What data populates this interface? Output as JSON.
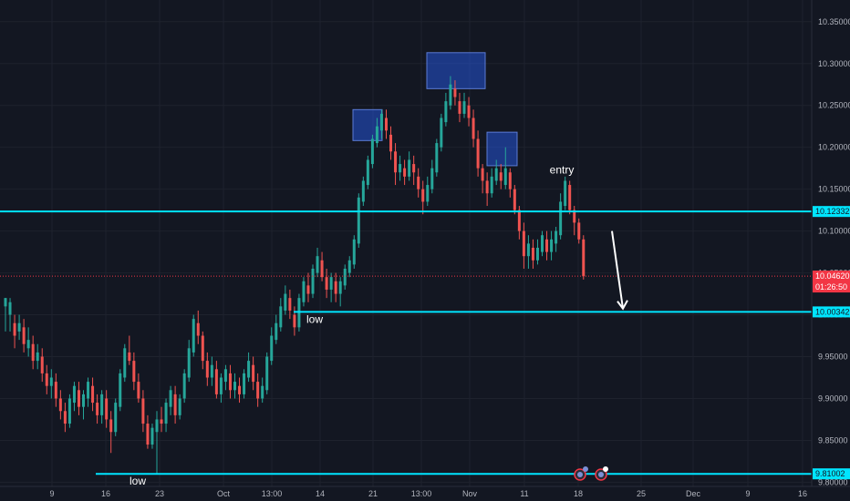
{
  "chart_data": {
    "type": "candlestick",
    "title": "",
    "xlabel": "",
    "ylabel": "",
    "ylim": [
      9.795,
      10.365
    ],
    "grid": true,
    "price_axis": {
      "position": "right",
      "ticks": [
        "9.80000",
        "9.85000",
        "9.90000",
        "9.95000",
        "10.00000",
        "10.05000",
        "10.10000",
        "10.15000",
        "10.20000",
        "10.25000",
        "10.30000",
        "10.35000"
      ]
    },
    "x_tick_labels": [
      "9",
      "16",
      "23",
      "Oct",
      "13:00",
      "14",
      "21",
      "13:00",
      "Nov",
      "11",
      "18",
      "25",
      "Dec",
      "9",
      "16"
    ],
    "horizontal_levels": [
      {
        "value": 10.12332,
        "label": "10.12332",
        "color": "#00e5ff"
      },
      {
        "value": 10.00342,
        "label": "10.00342",
        "color": "#00e5ff",
        "start_label": "low"
      },
      {
        "value": 9.81002,
        "label": "9.81002",
        "color": "#00e5ff",
        "start_label": "low"
      }
    ],
    "last_price": {
      "value": 10.0462,
      "label": "10.04620",
      "countdown": "01:26:50",
      "color": "#f23645"
    },
    "annotations": [
      {
        "text": "entry",
        "x_label": "18",
        "value": 10.163
      },
      {
        "text": "low",
        "near_level": 10.00342
      },
      {
        "text": "low",
        "near_level": 9.81002
      }
    ],
    "highlight_boxes": [
      {
        "y_range": [
          10.208,
          10.245
        ]
      },
      {
        "y_range": [
          10.27,
          10.313
        ]
      },
      {
        "y_range": [
          10.178,
          10.218
        ]
      }
    ],
    "arrow": {
      "from_value": 10.1,
      "to_value": 10.003,
      "direction": "down"
    },
    "candles": [
      [
        10.01,
        10.02,
        10.02,
        9.98
      ],
      [
        10.0,
        10.015,
        10.02,
        9.98
      ],
      [
        9.99,
        9.975,
        10.0,
        9.96
      ],
      [
        9.98,
        9.99,
        10.0,
        9.97
      ],
      [
        9.985,
        9.965,
        9.995,
        9.955
      ],
      [
        9.96,
        9.97,
        9.985,
        9.95
      ],
      [
        9.965,
        9.945,
        9.975,
        9.935
      ],
      [
        9.945,
        9.955,
        9.965,
        9.935
      ],
      [
        9.95,
        9.93,
        9.96,
        9.92
      ],
      [
        9.93,
        9.915,
        9.94,
        9.905
      ],
      [
        9.915,
        9.925,
        9.935,
        9.9
      ],
      [
        9.92,
        9.9,
        9.93,
        9.89
      ],
      [
        9.9,
        9.885,
        9.91,
        9.875
      ],
      [
        9.885,
        9.87,
        9.895,
        9.86
      ],
      [
        9.87,
        9.9,
        9.905,
        9.865
      ],
      [
        9.895,
        9.915,
        9.92,
        9.885
      ],
      [
        9.91,
        9.89,
        9.92,
        9.88
      ],
      [
        9.89,
        9.905,
        9.91,
        9.875
      ],
      [
        9.9,
        9.92,
        9.925,
        9.89
      ],
      [
        9.915,
        9.895,
        9.925,
        9.885
      ],
      [
        9.895,
        9.88,
        9.905,
        9.87
      ],
      [
        9.88,
        9.905,
        9.91,
        9.87
      ],
      [
        9.9,
        9.875,
        9.91,
        9.865
      ],
      [
        9.875,
        9.86,
        9.885,
        9.835
      ],
      [
        9.86,
        9.895,
        9.9,
        9.855
      ],
      [
        9.89,
        9.93,
        9.935,
        9.885
      ],
      [
        9.925,
        9.96,
        9.965,
        9.92
      ],
      [
        9.955,
        9.945,
        9.975,
        9.94
      ],
      [
        9.945,
        9.92,
        9.955,
        9.91
      ],
      [
        9.92,
        9.9,
        9.93,
        9.895
      ],
      [
        9.9,
        9.87,
        9.91,
        9.86
      ],
      [
        9.87,
        9.845,
        9.88,
        9.84
      ],
      [
        9.845,
        9.865,
        9.87,
        9.84
      ],
      [
        9.86,
        9.875,
        9.885,
        9.81
      ],
      [
        9.875,
        9.87,
        9.89,
        9.86
      ],
      [
        9.87,
        9.895,
        9.9,
        9.86
      ],
      [
        9.89,
        9.91,
        9.915,
        9.88
      ],
      [
        9.905,
        9.88,
        9.915,
        9.87
      ],
      [
        9.88,
        9.9,
        9.905,
        9.875
      ],
      [
        9.9,
        9.93,
        9.935,
        9.895
      ],
      [
        9.925,
        9.96,
        9.97,
        9.92
      ],
      [
        9.955,
        9.995,
        10.0,
        9.95
      ],
      [
        9.99,
        9.975,
        10.005,
        9.965
      ],
      [
        9.975,
        9.945,
        9.98,
        9.935
      ],
      [
        9.945,
        9.925,
        9.955,
        9.915
      ],
      [
        9.925,
        9.94,
        9.95,
        9.915
      ],
      [
        9.935,
        9.905,
        9.945,
        9.9
      ],
      [
        9.905,
        9.925,
        9.93,
        9.895
      ],
      [
        9.92,
        9.935,
        9.94,
        9.91
      ],
      [
        9.93,
        9.91,
        9.94,
        9.9
      ],
      [
        9.91,
        9.92,
        9.93,
        9.9
      ],
      [
        9.915,
        9.905,
        9.925,
        9.895
      ],
      [
        9.905,
        9.93,
        9.935,
        9.9
      ],
      [
        9.925,
        9.945,
        9.955,
        9.92
      ],
      [
        9.94,
        9.92,
        9.95,
        9.91
      ],
      [
        9.92,
        9.9,
        9.93,
        9.89
      ],
      [
        9.9,
        9.915,
        9.925,
        9.895
      ],
      [
        9.91,
        9.95,
        9.955,
        9.905
      ],
      [
        9.945,
        9.975,
        9.985,
        9.94
      ],
      [
        9.97,
        9.99,
        10.0,
        9.965
      ],
      [
        9.985,
        10.01,
        10.02,
        9.98
      ],
      [
        10.005,
        10.025,
        10.035,
        10.0
      ],
      [
        10.02,
        10.005,
        10.03,
        9.995
      ],
      [
        10.0,
        9.985,
        10.01,
        9.975
      ],
      [
        9.985,
        10.02,
        10.025,
        9.98
      ],
      [
        10.015,
        10.04,
        10.045,
        10.01
      ],
      [
        10.035,
        10.025,
        10.05,
        10.015
      ],
      [
        10.025,
        10.055,
        10.06,
        10.02
      ],
      [
        10.05,
        10.07,
        10.08,
        10.045
      ],
      [
        10.065,
        10.045,
        10.075,
        10.04
      ],
      [
        10.045,
        10.03,
        10.055,
        10.02
      ],
      [
        10.03,
        10.045,
        10.05,
        10.015
      ],
      [
        10.04,
        10.025,
        10.05,
        10.015
      ],
      [
        10.025,
        10.04,
        10.045,
        10.01
      ],
      [
        10.035,
        10.055,
        10.06,
        10.03
      ],
      [
        10.05,
        10.065,
        10.07,
        10.045
      ],
      [
        10.06,
        10.09,
        10.095,
        10.055
      ],
      [
        10.085,
        10.14,
        10.145,
        10.08
      ],
      [
        10.135,
        10.16,
        10.165,
        10.13
      ],
      [
        10.155,
        10.185,
        10.19,
        10.15
      ],
      [
        10.18,
        10.21,
        10.215,
        10.175
      ],
      [
        10.205,
        10.225,
        10.235,
        10.2
      ],
      [
        10.22,
        10.24,
        10.245,
        10.21
      ],
      [
        10.235,
        10.22,
        10.245,
        10.21
      ],
      [
        10.215,
        10.195,
        10.225,
        10.185
      ],
      [
        10.195,
        10.17,
        10.205,
        10.155
      ],
      [
        10.17,
        10.18,
        10.19,
        10.16
      ],
      [
        10.175,
        10.165,
        10.185,
        10.155
      ],
      [
        10.165,
        10.185,
        10.195,
        10.16
      ],
      [
        10.18,
        10.17,
        10.19,
        10.155
      ],
      [
        10.165,
        10.15,
        10.175,
        10.14
      ],
      [
        10.15,
        10.135,
        10.16,
        10.12
      ],
      [
        10.135,
        10.155,
        10.165,
        10.13
      ],
      [
        10.15,
        10.175,
        10.185,
        10.145
      ],
      [
        10.17,
        10.205,
        10.21,
        10.165
      ],
      [
        10.2,
        10.235,
        10.24,
        10.195
      ],
      [
        10.23,
        10.255,
        10.265,
        10.225
      ],
      [
        10.25,
        10.275,
        10.285,
        10.245
      ],
      [
        10.27,
        10.26,
        10.28,
        10.25
      ],
      [
        10.255,
        10.24,
        10.265,
        10.23
      ],
      [
        10.24,
        10.255,
        10.265,
        10.235
      ],
      [
        10.25,
        10.235,
        10.26,
        10.225
      ],
      [
        10.235,
        10.21,
        10.245,
        10.2
      ],
      [
        10.21,
        10.175,
        10.22,
        10.165
      ],
      [
        10.175,
        10.16,
        10.18,
        10.145
      ],
      [
        10.16,
        10.145,
        10.17,
        10.13
      ],
      [
        10.145,
        10.165,
        10.175,
        10.14
      ],
      [
        10.16,
        10.175,
        10.185,
        10.155
      ],
      [
        10.17,
        10.16,
        10.18,
        10.15
      ],
      [
        10.155,
        10.175,
        10.2,
        10.15
      ],
      [
        10.17,
        10.15,
        10.175,
        10.14
      ],
      [
        10.15,
        10.125,
        10.155,
        10.12
      ],
      [
        10.125,
        10.1,
        10.13,
        10.09
      ],
      [
        10.1,
        10.07,
        10.11,
        10.055
      ],
      [
        10.07,
        10.085,
        10.095,
        10.055
      ],
      [
        10.08,
        10.065,
        10.09,
        10.055
      ],
      [
        10.065,
        10.08,
        10.09,
        10.06
      ],
      [
        10.075,
        10.095,
        10.1,
        10.07
      ],
      [
        10.09,
        10.075,
        10.1,
        10.065
      ],
      [
        10.075,
        10.09,
        10.1,
        10.065
      ],
      [
        10.085,
        10.1,
        10.105,
        10.075
      ],
      [
        10.095,
        10.135,
        10.145,
        10.09
      ],
      [
        10.13,
        10.16,
        10.165,
        10.125
      ],
      [
        10.155,
        10.125,
        10.16,
        10.12
      ],
      [
        10.125,
        10.11,
        10.13,
        10.095
      ],
      [
        10.11,
        10.09,
        10.115,
        10.085
      ],
      [
        10.09,
        10.046,
        10.095,
        10.042
      ]
    ]
  }
}
